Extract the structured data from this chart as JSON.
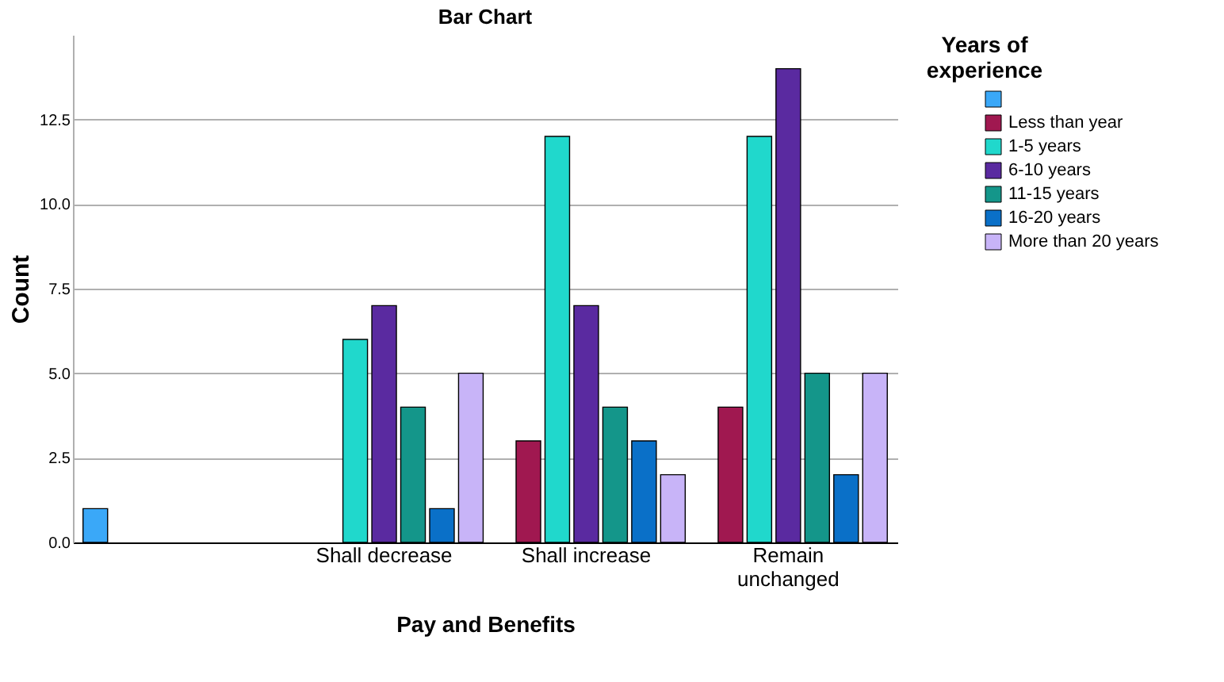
{
  "chart_data": {
    "type": "bar",
    "title": "Bar Chart",
    "xlabel": "Pay and Benefits",
    "ylabel": "Count",
    "legend_title": "Years of experience",
    "categories": [
      null,
      "Shall decrease",
      "Shall increase",
      "Remain unchanged"
    ],
    "series": [
      {
        "color": "#3aa8f8",
        "values": [
          1,
          null,
          null,
          null
        ]
      },
      {
        "name": "Less than year",
        "color": "#a01850",
        "values": [
          null,
          null,
          3,
          4
        ]
      },
      {
        "name": "1-5 years",
        "color": "#20d8cc",
        "values": [
          null,
          6,
          12,
          12
        ]
      },
      {
        "name": "6-10 years",
        "color": "#5a2aa0",
        "values": [
          null,
          7,
          7,
          14
        ]
      },
      {
        "name": "11-15 years",
        "color": "#14968a",
        "values": [
          null,
          4,
          4,
          5
        ]
      },
      {
        "name": "16-20 years",
        "color": "#0a70c8",
        "values": [
          null,
          1,
          3,
          2
        ]
      },
      {
        "name": "More than 20 years",
        "color": "#c8b4f8",
        "values": [
          null,
          5,
          2,
          5
        ]
      }
    ],
    "ylim": [
      0,
      15
    ],
    "yticks": [
      {
        "value": 0,
        "label": "0.0"
      },
      {
        "value": 2.5,
        "label": "2.5"
      },
      {
        "value": 5,
        "label": "5.0"
      },
      {
        "value": 7.5,
        "label": "7.5"
      },
      {
        "value": 10,
        "label": "10.0"
      },
      {
        "value": 12.5,
        "label": "12.5"
      }
    ],
    "grid": "y",
    "legend": "top right"
  }
}
